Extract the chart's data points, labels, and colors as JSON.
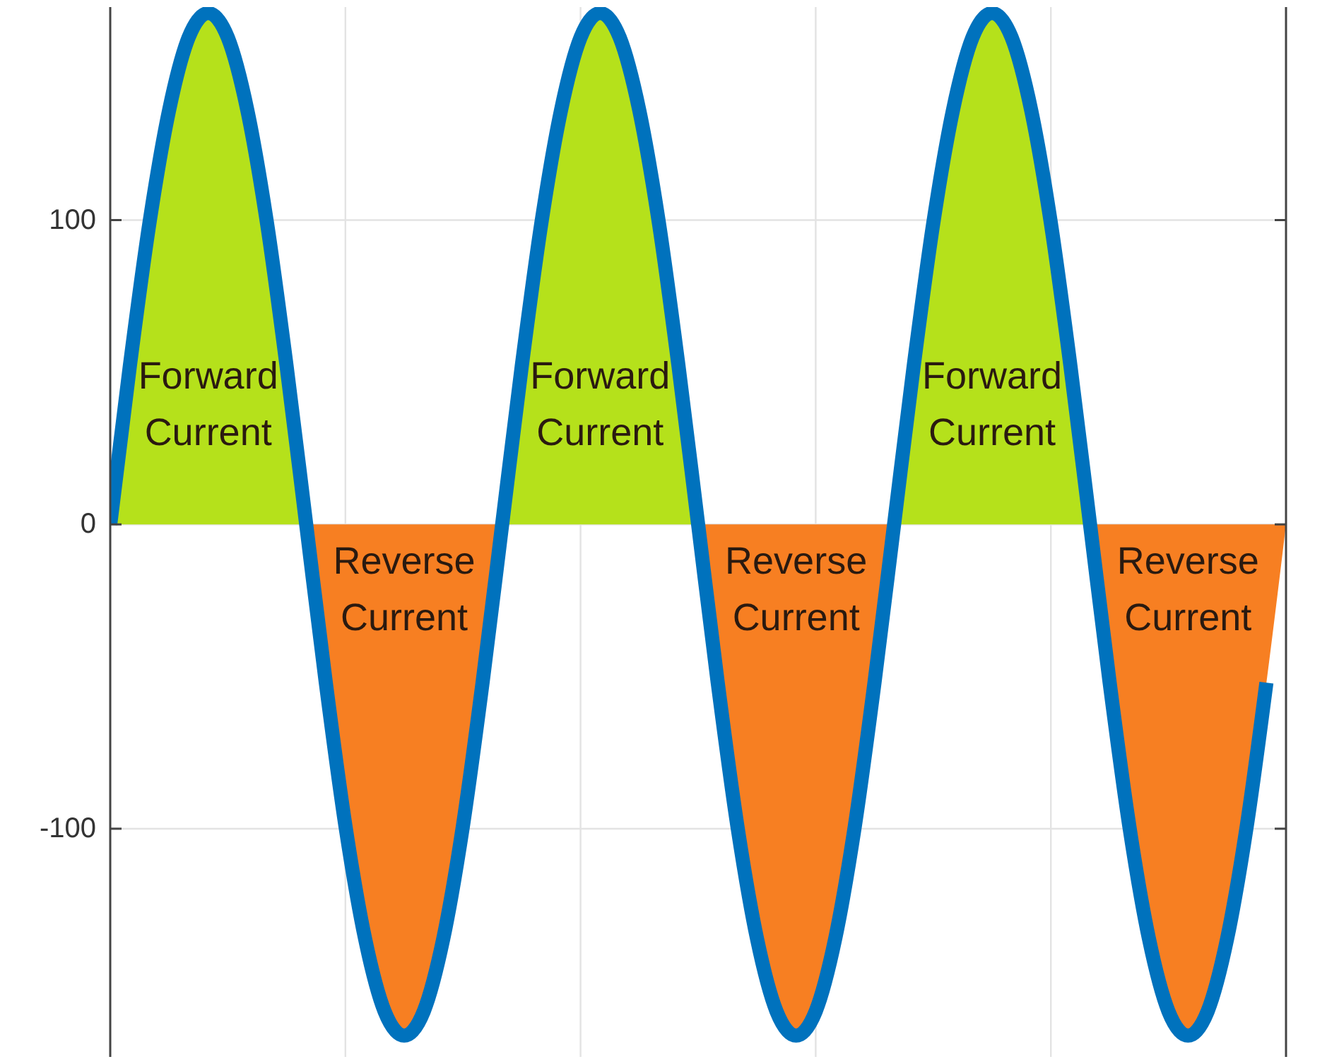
{
  "chart_data": {
    "type": "area",
    "categories": [
      null,
      null,
      null,
      null,
      null,
      null,
      null,
      null,
      null,
      null,
      null,
      null,
      null,
      null,
      null,
      null,
      null,
      null,
      null,
      null,
      null,
      null,
      null,
      null,
      null,
      null,
      null,
      null,
      null,
      null,
      null,
      null,
      null,
      null,
      null,
      null,
      null,
      null,
      null,
      null,
      null,
      null,
      null,
      null,
      null,
      null,
      null,
      null,
      null,
      null,
      null,
      null,
      null,
      null,
      null,
      null,
      null,
      null,
      null,
      null,
      null
    ],
    "ylim": [
      -175,
      170
    ],
    "yticks": [
      -100,
      0,
      100
    ],
    "grid": true,
    "series": [
      {
        "color": "#b5e11b",
        "values": [
          0,
          52,
          99,
          136,
          160,
          168,
          160,
          136,
          99,
          52,
          0,
          0,
          0,
          0,
          0,
          0,
          0,
          0,
          0,
          0,
          0,
          52,
          99,
          136,
          160,
          168,
          160,
          136,
          99,
          52,
          0,
          0,
          0,
          0,
          0,
          0,
          0,
          0,
          0,
          0,
          0,
          52,
          99,
          136,
          160,
          168,
          160,
          136,
          99,
          52,
          0,
          0,
          0,
          0,
          0,
          0,
          0,
          0,
          0,
          0,
          null
        ]
      },
      {
        "color": "#f77f22",
        "values": [
          0,
          0,
          0,
          0,
          0,
          0,
          0,
          0,
          0,
          0,
          0,
          -52,
          -99,
          -136,
          -160,
          -168,
          -160,
          -136,
          -99,
          -52,
          0,
          0,
          0,
          0,
          0,
          0,
          0,
          0,
          0,
          0,
          0,
          -52,
          -99,
          -136,
          -160,
          -168,
          -160,
          -136,
          -99,
          -52,
          0,
          0,
          0,
          0,
          0,
          0,
          0,
          0,
          0,
          0,
          0,
          -52,
          -99,
          -136,
          -160,
          -168,
          -160,
          -136,
          -99,
          -52,
          0
        ]
      },
      {
        "type": "line",
        "color": "#0072bd",
        "values": [
          0,
          52,
          99,
          136,
          160,
          168,
          160,
          136,
          99,
          52,
          0,
          -52,
          -99,
          -136,
          -160,
          -168,
          -160,
          -136,
          -99,
          -52,
          0,
          52,
          99,
          136,
          160,
          168,
          160,
          136,
          99,
          52,
          0,
          -52,
          -99,
          -136,
          -160,
          -168,
          -160,
          -136,
          -99,
          -52,
          0,
          52,
          99,
          136,
          160,
          168,
          160,
          136,
          99,
          52,
          0,
          -52,
          -99,
          -136,
          -160,
          -168,
          -160,
          -136,
          -99,
          -52,
          null
        ]
      }
    ],
    "annotations": [
      "Forward Current",
      "Reverse Current",
      "Forward Current",
      "Reverse Current",
      "Forward Current",
      "Reverse Current"
    ]
  }
}
